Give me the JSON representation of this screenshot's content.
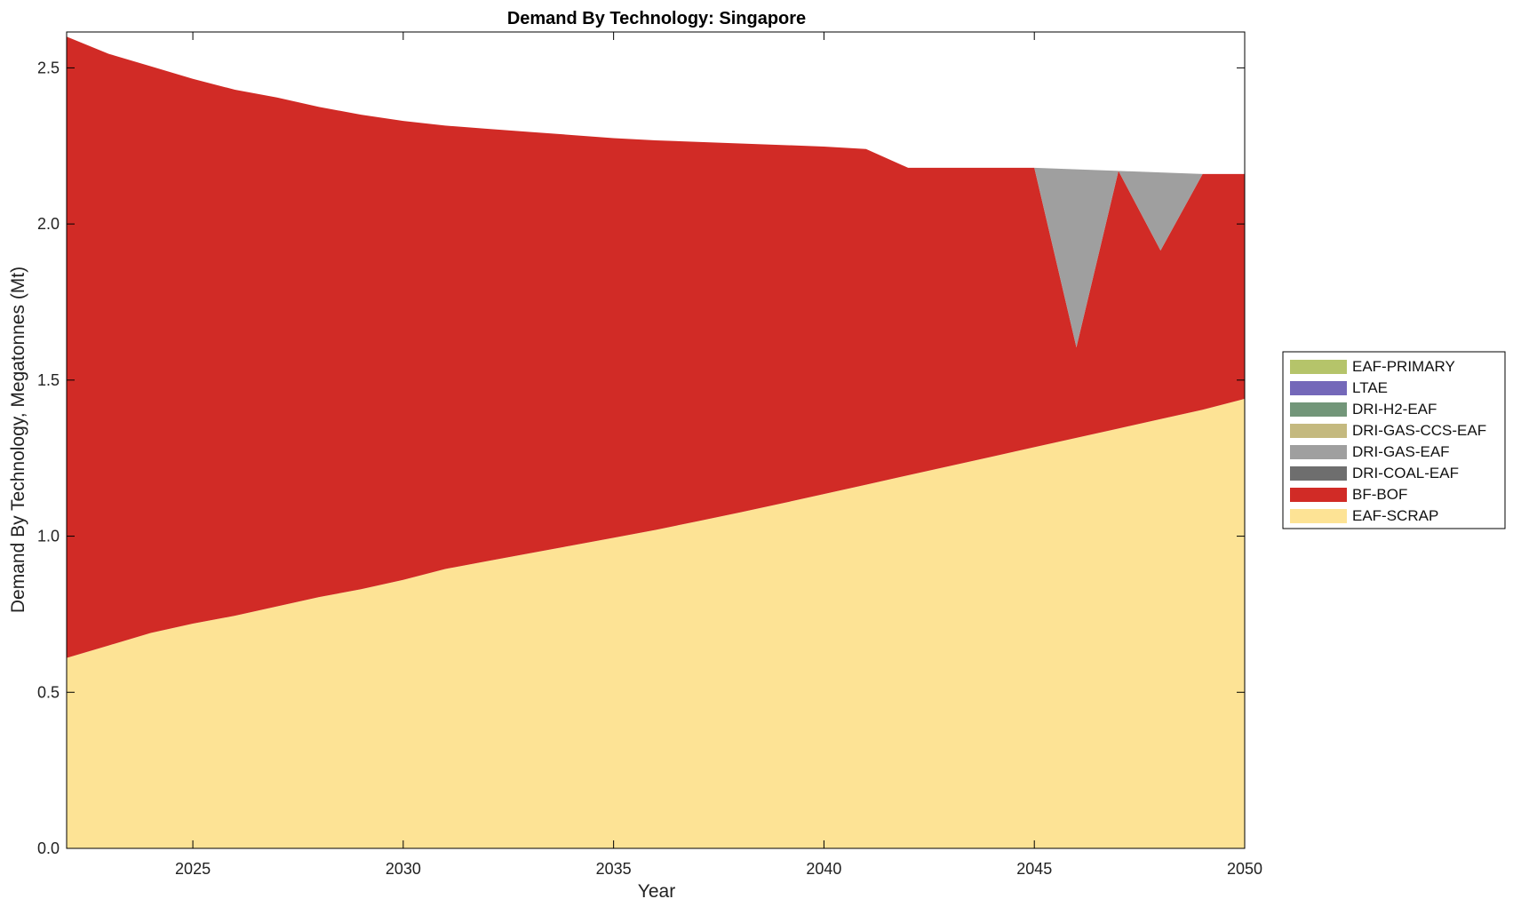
{
  "chart_data": {
    "type": "area",
    "title": "Demand By Technology: Singapore",
    "xlabel": "Year",
    "ylabel": "Demand By Technology, Megatonnes (Mt)",
    "xlim": [
      2022,
      2050
    ],
    "ylim": [
      0,
      2.6
    ],
    "x_ticks": [
      2025,
      2030,
      2035,
      2040,
      2045,
      2050
    ],
    "y_ticks": [
      0.0,
      0.5,
      1.0,
      1.5,
      2.0,
      2.5
    ],
    "y_tick_labels": [
      "0.0",
      "0.5",
      "1.0",
      "1.5",
      "2.0",
      "2.5"
    ],
    "grid": false,
    "legend_position": "right",
    "stacked": true,
    "x": [
      2022,
      2023,
      2024,
      2025,
      2026,
      2027,
      2028,
      2029,
      2030,
      2031,
      2032,
      2033,
      2034,
      2035,
      2036,
      2037,
      2038,
      2039,
      2040,
      2041,
      2042,
      2043,
      2044,
      2045,
      2046,
      2047,
      2048,
      2049,
      2050
    ],
    "series": [
      {
        "name": "EAF-SCRAP",
        "color": "#fde395",
        "values": [
          0.61,
          0.65,
          0.69,
          0.72,
          0.745,
          0.775,
          0.805,
          0.83,
          0.86,
          0.895,
          0.92,
          0.945,
          0.97,
          0.995,
          1.02,
          1.048,
          1.076,
          1.105,
          1.135,
          1.165,
          1.195,
          1.225,
          1.255,
          1.285,
          1.315,
          1.345,
          1.375,
          1.405,
          1.44
        ]
      },
      {
        "name": "BF-BOF",
        "color": "#d12b26",
        "values": [
          1.99,
          1.895,
          1.815,
          1.745,
          1.685,
          1.63,
          1.57,
          1.52,
          1.47,
          1.42,
          1.385,
          1.35,
          1.315,
          1.28,
          1.248,
          1.215,
          1.182,
          1.148,
          1.113,
          1.075,
          0.985,
          0.955,
          0.925,
          0.895,
          0.29,
          0.825,
          0.54,
          0.755,
          0.72
        ]
      },
      {
        "name": "DRI-COAL-EAF",
        "color": "#6e6e6e",
        "values": [
          0,
          0,
          0,
          0,
          0,
          0,
          0,
          0,
          0,
          0,
          0,
          0,
          0,
          0,
          0,
          0,
          0,
          0,
          0,
          0,
          0,
          0,
          0,
          0,
          0,
          0,
          0,
          0,
          0
        ]
      },
      {
        "name": "DRI-GAS-EAF",
        "color": "#9f9f9f",
        "values": [
          0,
          0,
          0,
          0,
          0,
          0,
          0,
          0,
          0,
          0,
          0,
          0,
          0,
          0,
          0,
          0,
          0,
          0,
          0,
          0,
          0,
          0,
          0,
          0,
          0.57,
          0,
          0.25,
          0,
          0
        ]
      },
      {
        "name": "DRI-GAS-CCS-EAF",
        "color": "#c4b97f",
        "values": [
          0,
          0,
          0,
          0,
          0,
          0,
          0,
          0,
          0,
          0,
          0,
          0,
          0,
          0,
          0,
          0,
          0,
          0,
          0,
          0,
          0,
          0,
          0,
          0,
          0,
          0,
          0,
          0,
          0
        ]
      },
      {
        "name": "DRI-H2-EAF",
        "color": "#729679",
        "values": [
          0,
          0,
          0,
          0,
          0,
          0,
          0,
          0,
          0,
          0,
          0,
          0,
          0,
          0,
          0,
          0,
          0,
          0,
          0,
          0,
          0,
          0,
          0,
          0,
          0,
          0,
          0,
          0,
          0
        ]
      },
      {
        "name": "LTAE",
        "color": "#7468b9",
        "values": [
          0,
          0,
          0,
          0,
          0,
          0,
          0,
          0,
          0,
          0,
          0,
          0,
          0,
          0,
          0,
          0,
          0,
          0,
          0,
          0,
          0,
          0,
          0,
          0,
          0,
          0,
          0,
          0,
          0
        ]
      },
      {
        "name": "EAF-PRIMARY",
        "color": "#b5c46a",
        "values": [
          0,
          0,
          0,
          0,
          0,
          0,
          0,
          0,
          0,
          0,
          0,
          0,
          0,
          0,
          0,
          0,
          0,
          0,
          0,
          0,
          0,
          0,
          0,
          0,
          0,
          0,
          0,
          0,
          0
        ]
      }
    ],
    "legend_order": [
      "EAF-PRIMARY",
      "LTAE",
      "DRI-H2-EAF",
      "DRI-GAS-CCS-EAF",
      "DRI-GAS-EAF",
      "DRI-COAL-EAF",
      "BF-BOF",
      "EAF-SCRAP"
    ]
  }
}
